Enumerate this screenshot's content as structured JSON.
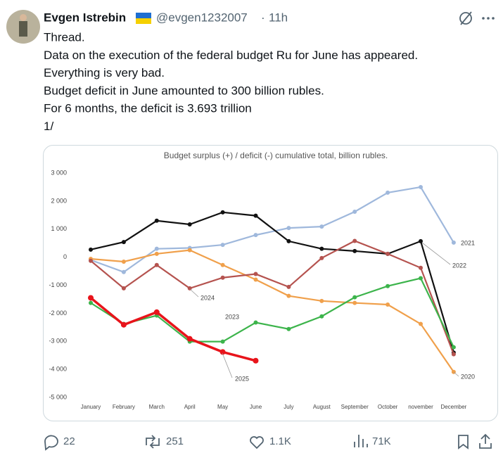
{
  "tweet": {
    "author": "Evgen Istrebin",
    "handle": "@evgen1232007",
    "separator": "·",
    "time": "11h",
    "lines": [
      "Thread.",
      "Data on the execution of the federal budget Ru for June has appeared.",
      "Everything is very bad.",
      "Budget deficit in June amounted to 300 billion rubles.",
      "For 6 months, the deficit is 3.693 trillion",
      "1/"
    ],
    "stats": {
      "replies": 22,
      "reposts": 251,
      "likes": "1.1K",
      "views": "71K"
    }
  },
  "chart_data": {
    "type": "line",
    "title": "Budget surplus (+) / deficit (-) cumulative total, billion rubles.",
    "categories": [
      "January",
      "February",
      "March",
      "April",
      "May",
      "June",
      "July",
      "August",
      "September",
      "October",
      "november",
      "December"
    ],
    "ylim": [
      -5000,
      3000
    ],
    "yticks": [
      {
        "value": -5000,
        "label": "-5 000"
      },
      {
        "value": -4000,
        "label": "-4 000"
      },
      {
        "value": -3000,
        "label": "-3 000"
      },
      {
        "value": -2000,
        "label": "-2 000"
      },
      {
        "value": -1000,
        "label": "-1 000"
      },
      0,
      {
        "value": 1000,
        "label": "1 000"
      },
      {
        "value": 2000,
        "label": "2 000"
      },
      {
        "value": 3000,
        "label": "3 000"
      }
    ],
    "grid": false,
    "series": [
      {
        "name": "2021",
        "color": "#9fb8dc",
        "values": [
          -100,
          -530,
          300,
          330,
          440,
          790,
          1040,
          1090,
          1620,
          2300,
          2500,
          520
        ]
      },
      {
        "name": "2022",
        "color": "#111111",
        "values": [
          270,
          540,
          1300,
          1170,
          1600,
          1480,
          570,
          300,
          220,
          120,
          570,
          -3400
        ]
      },
      {
        "name": "2020",
        "color": "#f0a04b",
        "values": [
          -60,
          -160,
          120,
          250,
          -280,
          -800,
          -1380,
          -1560,
          -1630,
          -1690,
          -2380,
          -4090
        ]
      },
      {
        "name": "2024",
        "color": "#b5534f",
        "values": [
          -130,
          -1110,
          -280,
          -1110,
          -730,
          -600,
          -1060,
          -30,
          580,
          120,
          -380,
          -3460
        ]
      },
      {
        "name": "2023",
        "color": "#3cb44b",
        "values": [
          -1630,
          -2380,
          -2080,
          -3010,
          -3010,
          -2330,
          -2560,
          -2110,
          -1430,
          -1030,
          -750,
          -3210
        ]
      },
      {
        "name": "2025",
        "color": "#e8141b",
        "values": [
          -1450,
          -2410,
          -1960,
          -2910,
          -3380,
          -3690,
          null,
          null,
          null,
          null,
          null,
          null
        ]
      }
    ]
  }
}
